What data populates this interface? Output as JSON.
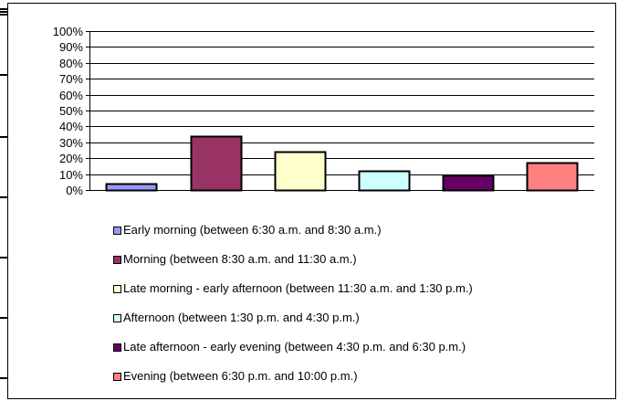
{
  "chart_data": {
    "type": "bar",
    "categories": [
      "Early morning (between 6:30 a.m. and 8:30 a.m.)",
      "Morning (between 8:30 a.m. and 11:30 a.m.)",
      "Late morning - early afternoon (between 11:30 a.m. and 1:30 p.m.)",
      "Afternoon (between 1:30 p.m. and 4:30 p.m.)",
      "Late afternoon - early evening (between 4:30 p.m. and 6:30 p.m.)",
      "Evening (between 6:30 p.m. and 10:00 p.m.)"
    ],
    "values": [
      4,
      34,
      24,
      12,
      9,
      17
    ],
    "colors": [
      "#9999FF",
      "#993366",
      "#FFFFCC",
      "#CCFFFF",
      "#660066",
      "#FF8080"
    ],
    "yticks": [
      "0%",
      "10%",
      "20%",
      "30%",
      "40%",
      "50%",
      "60%",
      "70%",
      "80%",
      "90%",
      "100%"
    ],
    "ylim": [
      0,
      100
    ],
    "y_unit": "%",
    "grid": true,
    "legend_position": "bottom",
    "title": "",
    "xlabel": "",
    "ylabel": ""
  }
}
